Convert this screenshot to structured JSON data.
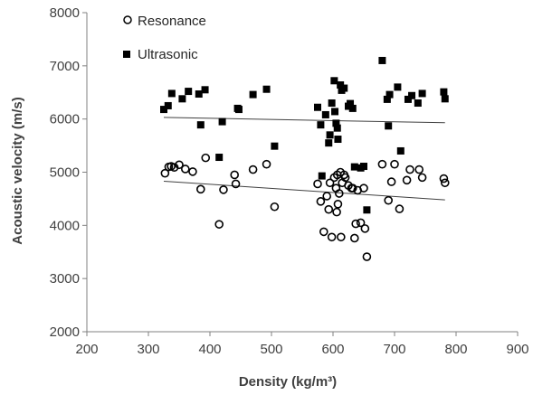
{
  "chart_data": {
    "type": "scatter",
    "title": "",
    "xlabel": "Density (kg/m³)",
    "ylabel": "Acoustic  velocity (m/s)",
    "xlim": [
      200,
      900
    ],
    "ylim": [
      2000,
      8000
    ],
    "x_ticks": [
      200,
      300,
      400,
      500,
      600,
      700,
      800,
      900
    ],
    "y_ticks": [
      2000,
      3000,
      4000,
      5000,
      6000,
      7000,
      8000
    ],
    "grid": false,
    "legend_position": "top-left",
    "series": [
      {
        "name": "Resonance",
        "marker": "open-circle",
        "color": "#000000",
        "trendline": {
          "x": [
            325,
            782
          ],
          "y": [
            4830,
            4480
          ]
        },
        "points": [
          [
            327,
            4980
          ],
          [
            333,
            5100
          ],
          [
            337,
            5110
          ],
          [
            342,
            5090
          ],
          [
            350,
            5140
          ],
          [
            360,
            5060
          ],
          [
            372,
            5010
          ],
          [
            385,
            4680
          ],
          [
            393,
            5270
          ],
          [
            415,
            4020
          ],
          [
            422,
            4670
          ],
          [
            440,
            4950
          ],
          [
            442,
            4780
          ],
          [
            470,
            5050
          ],
          [
            492,
            5150
          ],
          [
            505,
            4350
          ],
          [
            575,
            4780
          ],
          [
            580,
            4450
          ],
          [
            585,
            3880
          ],
          [
            590,
            4550
          ],
          [
            593,
            4300
          ],
          [
            595,
            4800
          ],
          [
            598,
            3780
          ],
          [
            602,
            4900
          ],
          [
            605,
            4700
          ],
          [
            606,
            4250
          ],
          [
            607,
            4950
          ],
          [
            608,
            4400
          ],
          [
            610,
            4600
          ],
          [
            612,
            5000
          ],
          [
            613,
            3780
          ],
          [
            615,
            4800
          ],
          [
            618,
            4950
          ],
          [
            620,
            4900
          ],
          [
            625,
            4750
          ],
          [
            630,
            4700
          ],
          [
            632,
            4700
          ],
          [
            635,
            3760
          ],
          [
            637,
            4030
          ],
          [
            640,
            4660
          ],
          [
            645,
            4050
          ],
          [
            650,
            4700
          ],
          [
            652,
            3940
          ],
          [
            655,
            3410
          ],
          [
            680,
            5150
          ],
          [
            690,
            4470
          ],
          [
            695,
            4820
          ],
          [
            700,
            5150
          ],
          [
            708,
            4310
          ],
          [
            720,
            4850
          ],
          [
            725,
            5050
          ],
          [
            740,
            5050
          ],
          [
            745,
            4900
          ],
          [
            780,
            4880
          ],
          [
            782,
            4800
          ]
        ]
      },
      {
        "name": "Ultrasonic",
        "marker": "filled-square",
        "color": "#000000",
        "trendline": {
          "x": [
            325,
            782
          ],
          "y": [
            6030,
            5930
          ]
        },
        "points": [
          [
            325,
            6180
          ],
          [
            332,
            6250
          ],
          [
            338,
            6480
          ],
          [
            355,
            6380
          ],
          [
            365,
            6520
          ],
          [
            382,
            6470
          ],
          [
            385,
            5890
          ],
          [
            392,
            6550
          ],
          [
            415,
            5280
          ],
          [
            420,
            5950
          ],
          [
            445,
            6200
          ],
          [
            447,
            6180
          ],
          [
            470,
            6460
          ],
          [
            492,
            6560
          ],
          [
            505,
            5490
          ],
          [
            575,
            6220
          ],
          [
            580,
            5890
          ],
          [
            582,
            4930
          ],
          [
            588,
            6080
          ],
          [
            593,
            5550
          ],
          [
            595,
            5700
          ],
          [
            598,
            6300
          ],
          [
            602,
            6720
          ],
          [
            603,
            6140
          ],
          [
            605,
            5920
          ],
          [
            607,
            5830
          ],
          [
            608,
            5620
          ],
          [
            612,
            6640
          ],
          [
            614,
            6540
          ],
          [
            618,
            6580
          ],
          [
            625,
            6240
          ],
          [
            628,
            6290
          ],
          [
            632,
            6200
          ],
          [
            635,
            5100
          ],
          [
            645,
            5080
          ],
          [
            650,
            5110
          ],
          [
            655,
            4290
          ],
          [
            680,
            7100
          ],
          [
            688,
            6370
          ],
          [
            690,
            5870
          ],
          [
            692,
            6460
          ],
          [
            705,
            6600
          ],
          [
            710,
            5400
          ],
          [
            722,
            6370
          ],
          [
            728,
            6440
          ],
          [
            738,
            6300
          ],
          [
            745,
            6480
          ],
          [
            780,
            6510
          ],
          [
            782,
            6380
          ]
        ]
      }
    ]
  }
}
